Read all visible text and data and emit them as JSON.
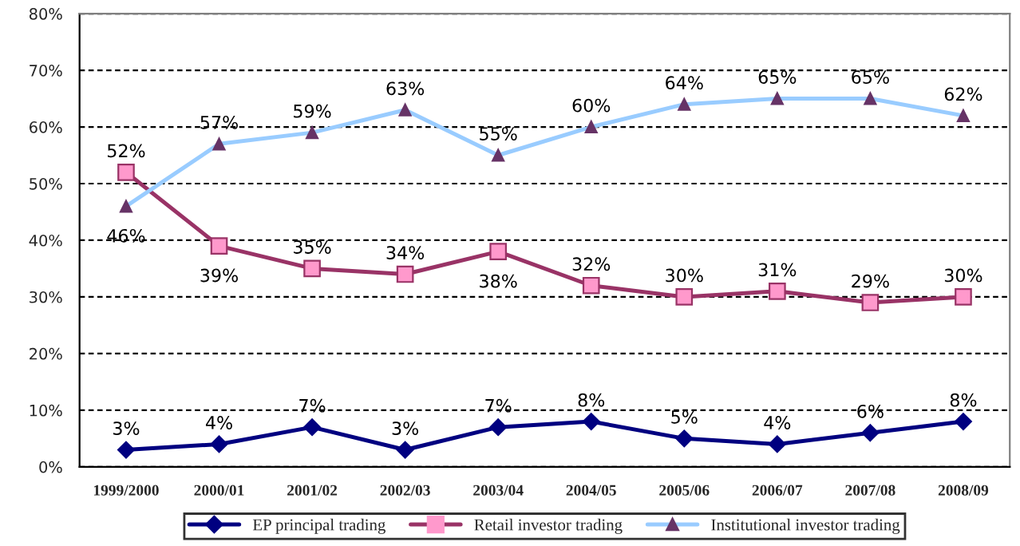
{
  "chart_data": {
    "type": "line",
    "categories": [
      "1999/2000",
      "2000/01",
      "2001/02",
      "2002/03",
      "2003/04",
      "2004/05",
      "2005/06",
      "2006/07",
      "2007/08",
      "2008/09"
    ],
    "series": [
      {
        "name": "EP principal trading",
        "color": "#000080",
        "marker": "diamond",
        "colors": [
          "#000080",
          "#000080",
          "#000080",
          "#000080",
          "#000080",
          "#000080",
          "#000080",
          "#000080",
          "#000080",
          "#000080"
        ],
        "values": [
          3,
          4,
          7,
          3,
          7,
          8,
          5,
          4,
          6,
          8
        ],
        "value_labels": [
          "3%",
          "4%",
          "7%",
          "3%",
          "7%",
          "8%",
          "5%",
          "4%",
          "6%",
          "8%"
        ]
      },
      {
        "name": "Retail investor trading",
        "color": "#993366",
        "marker": "square",
        "colors": [
          "#ff99cc",
          "#ff99cc",
          "#ff99cc",
          "#ff99cc",
          "#ff99cc",
          "#ff99cc",
          "#ff99cc",
          "#ff99cc",
          "#ff99cc",
          "#ff99cc"
        ],
        "values": [
          52,
          39,
          35,
          34,
          38,
          32,
          30,
          31,
          29,
          30
        ],
        "value_labels": [
          "52%",
          "39%",
          "35%",
          "34%",
          "38%",
          "32%",
          "30%",
          "31%",
          "29%",
          "30%"
        ]
      },
      {
        "name": "Institutional investor trading",
        "color": "#99ccff",
        "marker": "triangle",
        "colors": [
          "#663366",
          "#663366",
          "#663366",
          "#663366",
          "#663366",
          "#663366",
          "#663366",
          "#663366",
          "#663366",
          "#663366"
        ],
        "values": [
          46,
          57,
          59,
          63,
          55,
          60,
          64,
          65,
          65,
          62
        ],
        "value_labels": [
          "46%",
          "57%",
          "59%",
          "63%",
          "55%",
          "60%",
          "64%",
          "65%",
          "65%",
          "62%"
        ]
      }
    ],
    "ylim": [
      0,
      80
    ],
    "yticks": [
      {
        "value": 0,
        "label": "0%"
      },
      {
        "value": 10,
        "label": "10%"
      },
      {
        "value": 20,
        "label": "20%"
      },
      {
        "value": 30,
        "label": "30%"
      },
      {
        "value": 40,
        "label": "40%"
      },
      {
        "value": 50,
        "label": "50%"
      },
      {
        "value": 60,
        "label": "60%"
      },
      {
        "value": 70,
        "label": "70%"
      },
      {
        "value": 80,
        "label": "80%"
      }
    ],
    "grid": "y",
    "legend": "bottom",
    "line_style": "solid"
  }
}
